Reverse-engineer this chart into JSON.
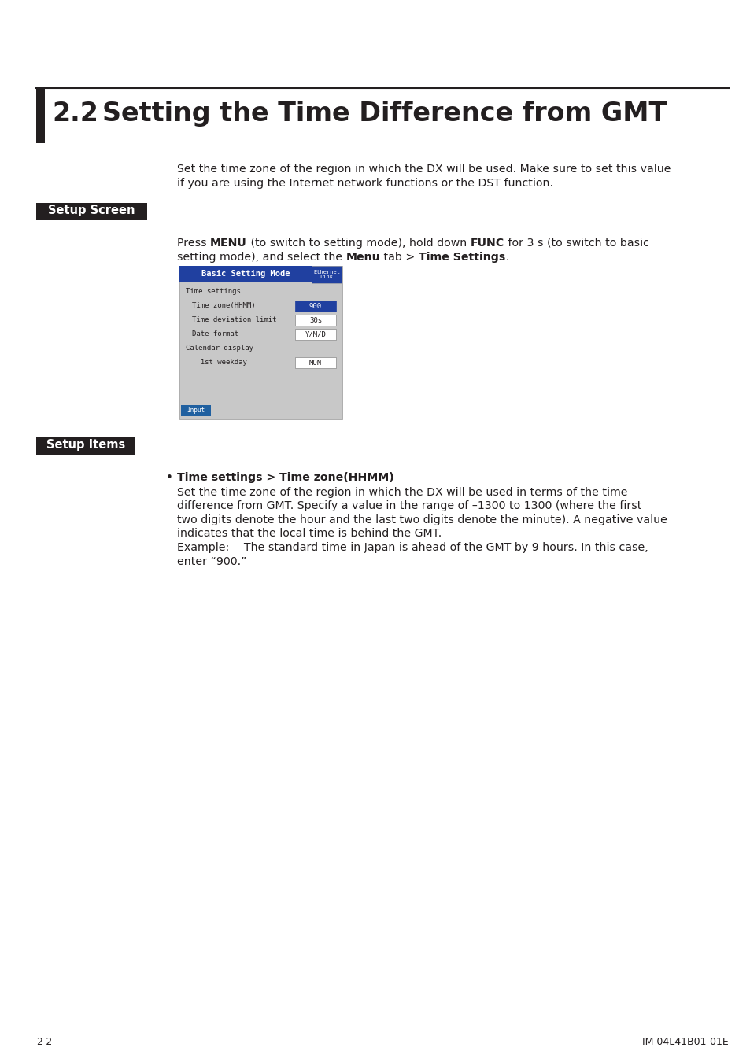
{
  "page_bg": "#ffffff",
  "section_number": "2.2",
  "section_title": "Setting the Time Difference from GMT",
  "title_color": "#231f20",
  "title_fontsize": 24,
  "left_bar_color": "#231f20",
  "body_text_fontsize": 10.2,
  "body_text_color": "#231f20",
  "intro_line1": "Set the time zone of the region in which the DX will be used. Make sure to set this value",
  "intro_line2": "if you are using the Internet network functions or the DST function.",
  "setup_screen_label": "Setup Screen",
  "setup_items_label": "Setup Items",
  "label_bg": "#231f20",
  "label_color": "#ffffff",
  "label_fontsize": 10.5,
  "press_parts_line1": [
    [
      "Press ",
      false
    ],
    [
      "MENU",
      true
    ],
    [
      " (to switch to setting mode), hold down ",
      false
    ],
    [
      "FUNC",
      true
    ],
    [
      " for 3 s (to switch to basic",
      false
    ]
  ],
  "press_parts_line2": [
    [
      "setting mode), and select the ",
      false
    ],
    [
      "Menu",
      true
    ],
    [
      " tab > ",
      false
    ],
    [
      "Time Settings",
      true
    ],
    [
      ".",
      false
    ]
  ],
  "screen_bg": "#c8c8c8",
  "screen_border": "#888888",
  "screen_header_bg": "#2040a0",
  "screen_header_text": "Basic Setting Mode",
  "screen_header_text_color": "#ffffff",
  "screen_link_text": "Ethernet\nLink",
  "screen_link_bg": "#2040a0",
  "screen_link_border": "#aaaaaa",
  "screen_rows": [
    {
      "label": "Time settings",
      "indent": 0,
      "value": null,
      "value_bg": null,
      "value_color": null,
      "value_border": null
    },
    {
      "label": "Time zone(HHMM)",
      "indent": 1,
      "value": "900",
      "value_bg": "#2040a0",
      "value_color": "#ffffff",
      "value_border": "#2040a0"
    },
    {
      "label": "Time deviation limit",
      "indent": 1,
      "value": "30s",
      "value_bg": "#ffffff",
      "value_color": "#231f20",
      "value_border": "#888888"
    },
    {
      "label": "Date format",
      "indent": 1,
      "value": "Y/M/D",
      "value_bg": "#ffffff",
      "value_color": "#231f20",
      "value_border": "#888888"
    },
    {
      "label": "Calendar display",
      "indent": 0,
      "value": null,
      "value_bg": null,
      "value_color": null,
      "value_border": null
    },
    {
      "label": "  1st weekday",
      "indent": 1,
      "value": "MON",
      "value_bg": "#ffffff",
      "value_color": "#231f20",
      "value_border": "#888888"
    }
  ],
  "screen_input_text": "Input",
  "screen_input_bg": "#2060a0",
  "screen_input_color": "#ffffff",
  "bullet_title": "Time settings > Time zone(HHMM)",
  "bullet_body_lines": [
    "Set the time zone of the region in which the DX will be used in terms of the time",
    "difference from GMT. Specify a value in the range of –1300 to 1300 (where the first",
    "two digits denote the hour and the last two digits denote the minute). A negative value",
    "indicates that the local time is behind the GMT.",
    "Example:  The standard time in Japan is ahead of the GMT by 9 hours. In this case,",
    "enter “900.”"
  ],
  "footer_left": "2-2",
  "footer_right": "IM 04L41B01-01E",
  "footer_fontsize": 9.0
}
